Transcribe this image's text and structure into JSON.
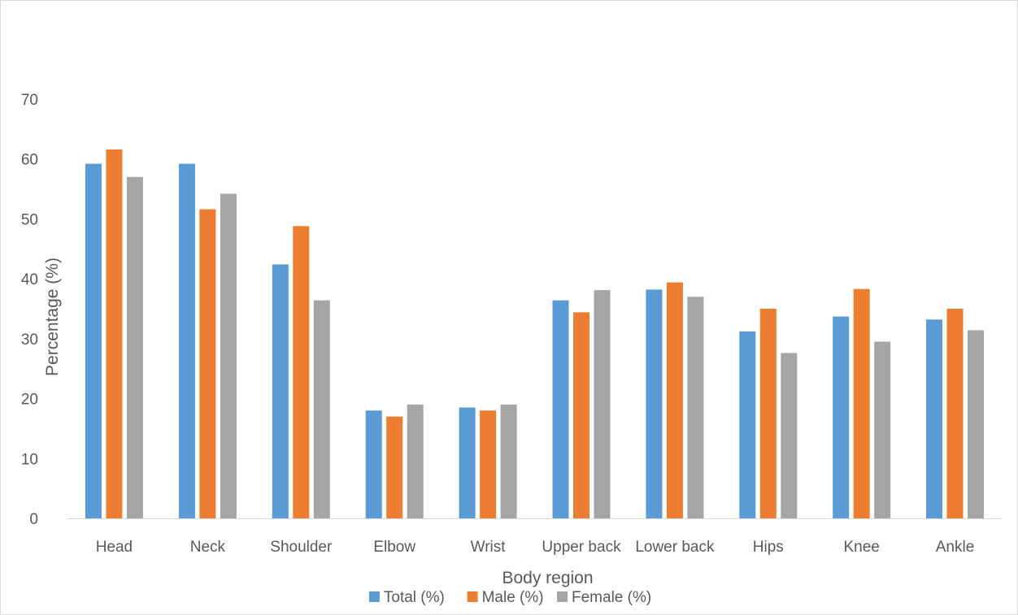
{
  "chart_data": {
    "type": "bar",
    "title": "",
    "xlabel": "Body region",
    "ylabel": "Percentage (%)",
    "ylim": [
      0,
      70
    ],
    "ytick_step": 10,
    "yticks": [
      "0",
      "10",
      "20",
      "30",
      "40",
      "50",
      "60",
      "70"
    ],
    "grid": false,
    "legend_position": "bottom",
    "categories": [
      "Head",
      "Neck",
      "Shoulder",
      "Elbow",
      "Wrist",
      "Upper back",
      "Lower back",
      "Hips",
      "Knee",
      "Ankle"
    ],
    "series": [
      {
        "name": "Total (%)",
        "color": "#5B9BD5",
        "values": [
          59.2,
          59.2,
          42.4,
          18.0,
          18.5,
          36.4,
          38.2,
          31.2,
          33.7,
          33.2
        ]
      },
      {
        "name": "Male (%)",
        "color": "#ED7D31",
        "values": [
          61.6,
          51.6,
          48.8,
          17.0,
          18.0,
          34.4,
          39.4,
          35.0,
          38.3,
          35.0
        ]
      },
      {
        "name": "Female (%)",
        "color": "#A5A5A5",
        "values": [
          57.0,
          54.2,
          36.4,
          19.0,
          19.0,
          38.1,
          37.0,
          27.6,
          29.5,
          31.4
        ]
      }
    ]
  }
}
